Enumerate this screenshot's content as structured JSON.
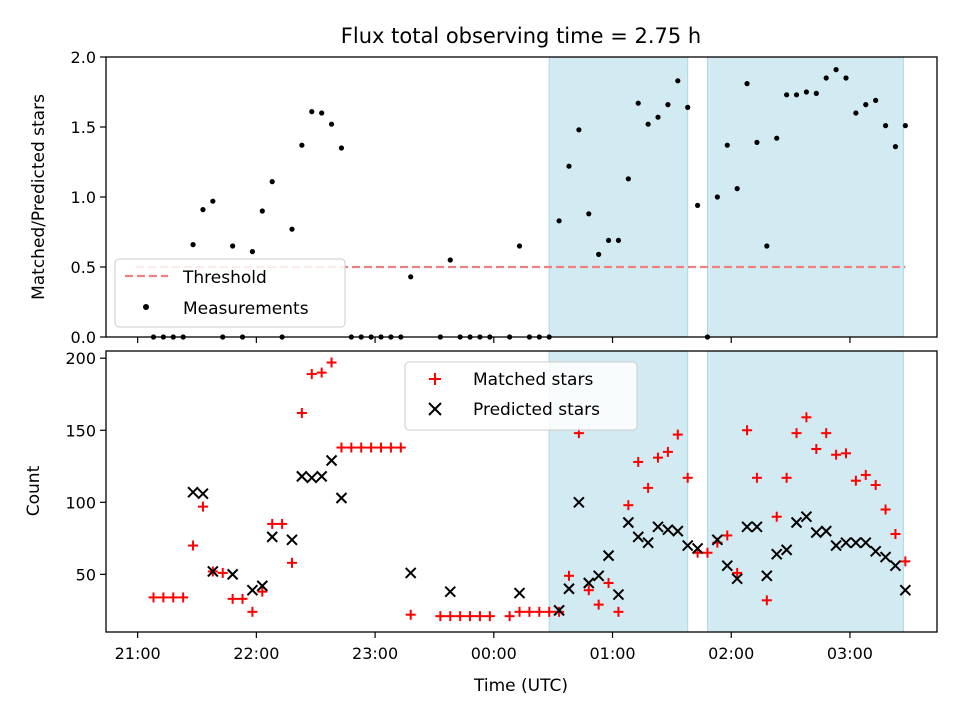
{
  "title": "Flux total observing time = 2.75 h",
  "colors": {
    "threshold": "#f08080",
    "measurements": "#000000",
    "matched": "#ff0000",
    "predicted": "#000000",
    "shade": "#add8e6"
  },
  "chart_data": [
    {
      "type": "scatter",
      "ylabel": "Matched/Predicted stars",
      "ylim": [
        0,
        2.0
      ],
      "y_ticks": [
        "0.0",
        "0.5",
        "1.0",
        "1.5",
        "2.0"
      ],
      "xlim": [
        "20:44",
        "03:44"
      ],
      "shaded_ranges": [
        [
          "00:28",
          "01:38"
        ],
        [
          "01:48",
          "03:27"
        ]
      ],
      "threshold": 0.5,
      "legend": {
        "position": "lower-left",
        "entries": [
          "Threshold",
          "Measurements"
        ]
      },
      "series": [
        {
          "name": "Measurements",
          "points": [
            [
              "21:08",
              0
            ],
            [
              "21:13",
              0
            ],
            [
              "21:18",
              0
            ],
            [
              "21:23",
              0
            ],
            [
              "21:28",
              0.66
            ],
            [
              "21:33",
              0.91
            ],
            [
              "21:38",
              0.97
            ],
            [
              "21:43",
              0
            ],
            [
              "21:48",
              0.65
            ],
            [
              "21:53",
              0
            ],
            [
              "21:58",
              0.61
            ],
            [
              "22:03",
              0.9
            ],
            [
              "22:08",
              1.11
            ],
            [
              "22:13",
              0
            ],
            [
              "22:18",
              0.77
            ],
            [
              "22:23",
              1.37
            ],
            [
              "22:28",
              1.61
            ],
            [
              "22:33",
              1.6
            ],
            [
              "22:38",
              1.52
            ],
            [
              "22:43",
              1.35
            ],
            [
              "22:48",
              0
            ],
            [
              "22:53",
              0
            ],
            [
              "22:58",
              0
            ],
            [
              "23:03",
              0
            ],
            [
              "23:08",
              0
            ],
            [
              "23:13",
              0
            ],
            [
              "23:18",
              0.43
            ],
            [
              "23:33",
              0
            ],
            [
              "23:38",
              0.55
            ],
            [
              "23:43",
              0
            ],
            [
              "23:48",
              0
            ],
            [
              "23:53",
              0
            ],
            [
              "23:58",
              0
            ],
            [
              "00:08",
              0
            ],
            [
              "00:13",
              0.65
            ],
            [
              "00:18",
              0
            ],
            [
              "00:23",
              0
            ],
            [
              "00:28",
              0
            ],
            [
              "00:33",
              0.83
            ],
            [
              "00:38",
              1.22
            ],
            [
              "00:43",
              1.48
            ],
            [
              "00:48",
              0.88
            ],
            [
              "00:53",
              0.59
            ],
            [
              "00:58",
              0.69
            ],
            [
              "01:03",
              0.69
            ],
            [
              "01:08",
              1.13
            ],
            [
              "01:13",
              1.67
            ],
            [
              "01:18",
              1.52
            ],
            [
              "01:23",
              1.57
            ],
            [
              "01:28",
              1.66
            ],
            [
              "01:33",
              1.83
            ],
            [
              "01:38",
              1.64
            ],
            [
              "01:43",
              0.94
            ],
            [
              "01:48",
              0
            ],
            [
              "01:53",
              1.0
            ],
            [
              "01:58",
              1.37
            ],
            [
              "02:03",
              1.06
            ],
            [
              "02:08",
              1.81
            ],
            [
              "02:13",
              1.39
            ],
            [
              "02:18",
              0.65
            ],
            [
              "02:23",
              1.42
            ],
            [
              "02:28",
              1.73
            ],
            [
              "02:33",
              1.73
            ],
            [
              "02:38",
              1.75
            ],
            [
              "02:43",
              1.74
            ],
            [
              "02:48",
              1.85
            ],
            [
              "02:53",
              1.91
            ],
            [
              "02:58",
              1.85
            ],
            [
              "03:03",
              1.6
            ],
            [
              "03:08",
              1.66
            ],
            [
              "03:13",
              1.69
            ],
            [
              "03:18",
              1.51
            ],
            [
              "03:23",
              1.36
            ],
            [
              "03:28",
              1.51
            ]
          ]
        }
      ]
    },
    {
      "type": "scatter",
      "xlabel": "Time (UTC)",
      "ylabel": "Count",
      "ylim": [
        10,
        205
      ],
      "y_ticks": [
        "50",
        "100",
        "150",
        "200"
      ],
      "x_ticks": [
        "21:00",
        "22:00",
        "23:00",
        "00:00",
        "01:00",
        "02:00",
        "03:00"
      ],
      "xlim": [
        "20:44",
        "03:44"
      ],
      "shaded_ranges": [
        [
          "00:28",
          "01:38"
        ],
        [
          "01:48",
          "03:27"
        ]
      ],
      "legend": {
        "position": "upper-center",
        "entries": [
          "Matched stars",
          "Predicted stars"
        ]
      },
      "series": [
        {
          "name": "Matched stars",
          "marker": "plus",
          "points": [
            [
              "21:08",
              34
            ],
            [
              "21:13",
              34
            ],
            [
              "21:18",
              34
            ],
            [
              "21:23",
              34
            ],
            [
              "21:28",
              70
            ],
            [
              "21:33",
              97
            ],
            [
              "21:38",
              52
            ],
            [
              "21:43",
              51
            ],
            [
              "21:48",
              33
            ],
            [
              "21:53",
              33
            ],
            [
              "21:58",
              24
            ],
            [
              "22:03",
              38
            ],
            [
              "22:08",
              85
            ],
            [
              "22:13",
              85
            ],
            [
              "22:18",
              58
            ],
            [
              "22:23",
              162
            ],
            [
              "22:28",
              189
            ],
            [
              "22:33",
              190
            ],
            [
              "22:38",
              197
            ],
            [
              "22:43",
              138
            ],
            [
              "22:48",
              138
            ],
            [
              "22:53",
              138
            ],
            [
              "22:58",
              138
            ],
            [
              "23:03",
              138
            ],
            [
              "23:08",
              138
            ],
            [
              "23:13",
              138
            ],
            [
              "23:18",
              22
            ],
            [
              "23:33",
              21
            ],
            [
              "23:38",
              21
            ],
            [
              "23:43",
              21
            ],
            [
              "23:48",
              21
            ],
            [
              "23:53",
              21
            ],
            [
              "23:58",
              21
            ],
            [
              "00:08",
              21
            ],
            [
              "00:13",
              24
            ],
            [
              "00:18",
              24
            ],
            [
              "00:23",
              24
            ],
            [
              "00:28",
              24
            ],
            [
              "00:33",
              24
            ],
            [
              "00:38",
              49
            ],
            [
              "00:43",
              148
            ],
            [
              "00:48",
              39
            ],
            [
              "00:53",
              29
            ],
            [
              "00:58",
              44
            ],
            [
              "01:03",
              24
            ],
            [
              "01:08",
              98
            ],
            [
              "01:13",
              128
            ],
            [
              "01:18",
              110
            ],
            [
              "01:23",
              131
            ],
            [
              "01:28",
              135
            ],
            [
              "01:33",
              147
            ],
            [
              "01:38",
              117
            ],
            [
              "01:43",
              65
            ],
            [
              "01:48",
              65
            ],
            [
              "01:53",
              72
            ],
            [
              "01:58",
              77
            ],
            [
              "02:03",
              51
            ],
            [
              "02:08",
              150
            ],
            [
              "02:13",
              117
            ],
            [
              "02:18",
              32
            ],
            [
              "02:23",
              90
            ],
            [
              "02:28",
              117
            ],
            [
              "02:33",
              148
            ],
            [
              "02:38",
              159
            ],
            [
              "02:43",
              137
            ],
            [
              "02:48",
              148
            ],
            [
              "02:53",
              133
            ],
            [
              "02:58",
              134
            ],
            [
              "03:03",
              115
            ],
            [
              "03:08",
              119
            ],
            [
              "03:13",
              112
            ],
            [
              "03:18",
              95
            ],
            [
              "03:23",
              78
            ],
            [
              "03:28",
              59
            ]
          ]
        },
        {
          "name": "Predicted stars",
          "marker": "x",
          "points": [
            [
              "21:28",
              107
            ],
            [
              "21:33",
              106
            ],
            [
              "21:38",
              52
            ],
            [
              "21:48",
              50
            ],
            [
              "21:58",
              39
            ],
            [
              "22:03",
              42
            ],
            [
              "22:08",
              76
            ],
            [
              "22:18",
              74
            ],
            [
              "22:23",
              118
            ],
            [
              "22:28",
              117
            ],
            [
              "22:33",
              118
            ],
            [
              "22:38",
              129
            ],
            [
              "22:43",
              103
            ],
            [
              "23:18",
              51
            ],
            [
              "23:38",
              38
            ],
            [
              "00:13",
              37
            ],
            [
              "00:33",
              25
            ],
            [
              "00:38",
              40
            ],
            [
              "00:43",
              100
            ],
            [
              "00:48",
              44
            ],
            [
              "00:53",
              49
            ],
            [
              "00:58",
              63
            ],
            [
              "01:03",
              36
            ],
            [
              "01:08",
              86
            ],
            [
              "01:13",
              76
            ],
            [
              "01:18",
              72
            ],
            [
              "01:23",
              83
            ],
            [
              "01:28",
              81
            ],
            [
              "01:33",
              80
            ],
            [
              "01:38",
              70
            ],
            [
              "01:43",
              68
            ],
            [
              "01:53",
              74
            ],
            [
              "01:58",
              56
            ],
            [
              "02:03",
              47
            ],
            [
              "02:08",
              83
            ],
            [
              "02:13",
              83
            ],
            [
              "02:18",
              49
            ],
            [
              "02:23",
              64
            ],
            [
              "02:28",
              67
            ],
            [
              "02:33",
              86
            ],
            [
              "02:38",
              90
            ],
            [
              "02:43",
              79
            ],
            [
              "02:48",
              80
            ],
            [
              "02:53",
              70
            ],
            [
              "02:58",
              72
            ],
            [
              "03:03",
              72
            ],
            [
              "03:08",
              72
            ],
            [
              "03:13",
              66
            ],
            [
              "03:18",
              62
            ],
            [
              "03:23",
              56
            ],
            [
              "03:28",
              39
            ]
          ]
        }
      ]
    }
  ]
}
